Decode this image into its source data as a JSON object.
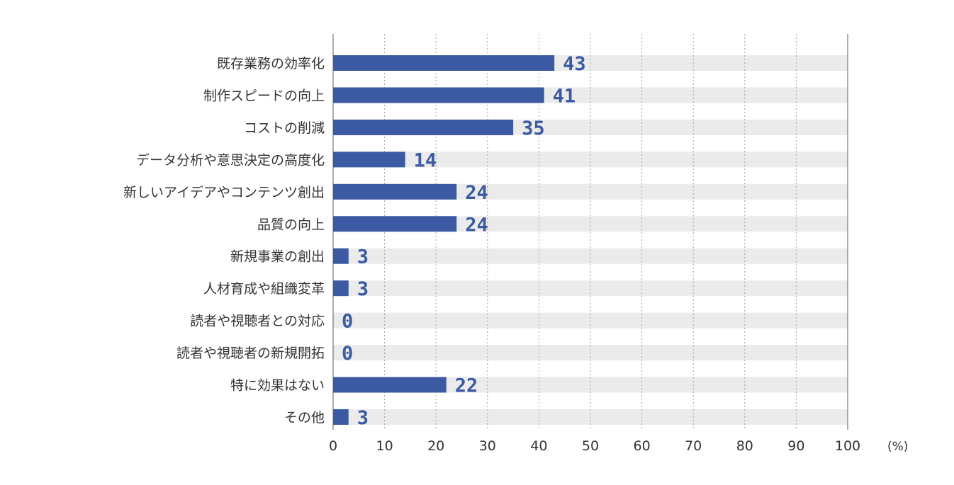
{
  "colors": {
    "bar": "#3b5aa3",
    "track": "#ebebeb",
    "value_text": "#3b5aa3",
    "grid": "#a0a0a0",
    "axis": "#777777"
  },
  "chart_data": {
    "type": "bar",
    "orientation": "horizontal",
    "categories": [
      "既存業務の効率化",
      "制作スピードの向上",
      "コストの削減",
      "データ分析や意思決定の高度化",
      "新しいアイデアやコンテンツ創出",
      "品質の向上",
      "新規事業の創出",
      "人材育成や組織変革",
      "読者や視聴者との対応",
      "読者や視聴者の新規開拓",
      "特に効果はない",
      "その他"
    ],
    "values": [
      43,
      41,
      35,
      14,
      24,
      24,
      3,
      3,
      0,
      0,
      22,
      3
    ],
    "x_ticks": [
      "0",
      "10",
      "20",
      "30",
      "40",
      "50",
      "60",
      "70",
      "80",
      "90",
      "100"
    ],
    "xlim": [
      0,
      100
    ],
    "x_unit": "(%)",
    "grid": "vertical dotted",
    "legend": "none",
    "title": "",
    "xlabel": "",
    "ylabel": ""
  }
}
